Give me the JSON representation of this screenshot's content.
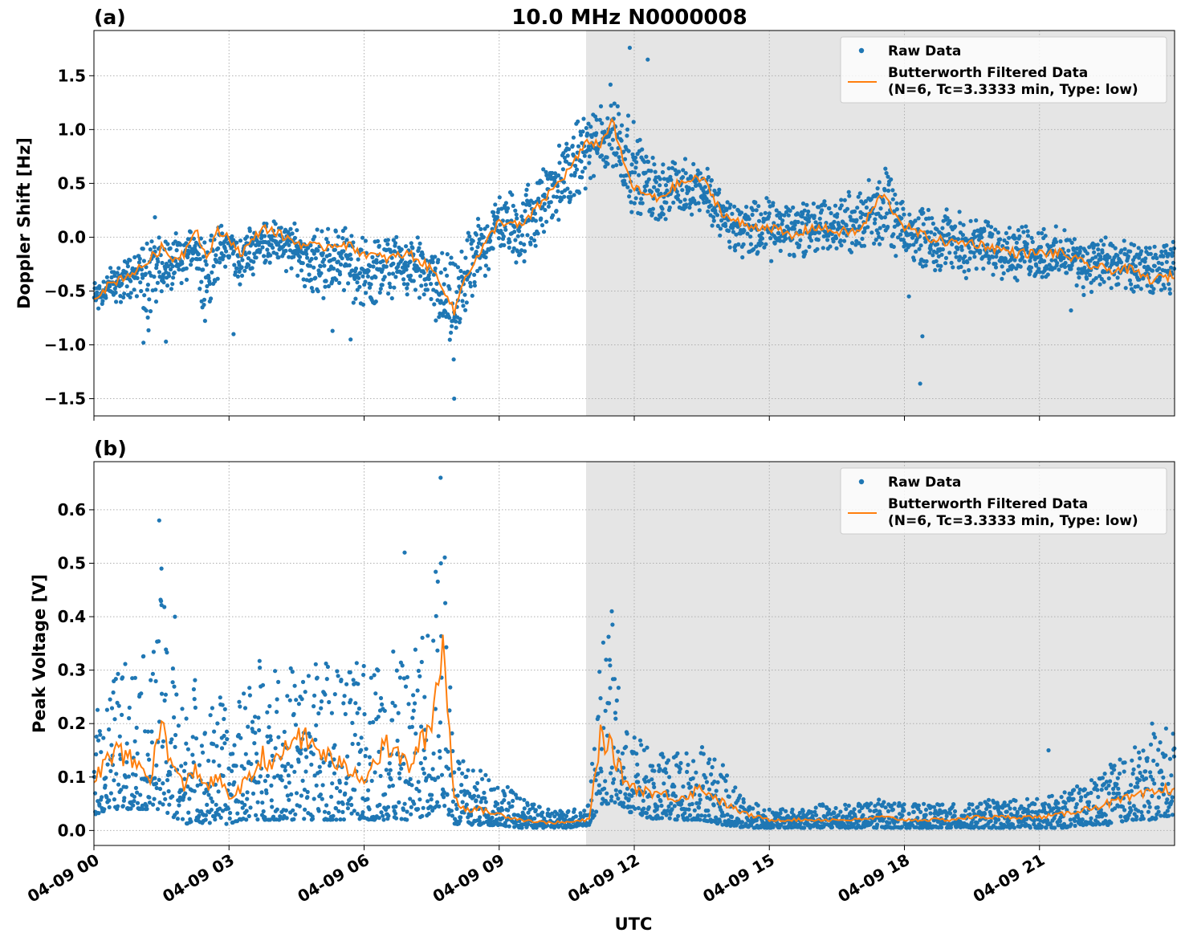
{
  "title": "10.0 MHz N0000008",
  "xlabel": "UTC",
  "x_tick_labels": [
    "04-09 00",
    "04-09 03",
    "04-09 06",
    "04-09 09",
    "04-09 12",
    "04-09 15",
    "04-09 18",
    "04-09 21"
  ],
  "colors": {
    "raw": "#1f77b4",
    "filtered": "#ff7f0e",
    "night_shade": "#e5e5e5"
  },
  "legend": {
    "raw_label": "Raw Data",
    "filtered_label_line1": "Butterworth Filtered Data",
    "filtered_label_line2": "(N=6, Tc=3.3333 min, Type: low)"
  },
  "chart_data": [
    {
      "type": "scatter",
      "panel_label": "(a)",
      "ylabel": "Doppler Shift [Hz]",
      "xlim_hours": [
        0,
        24
      ],
      "ylim": [
        -1.66,
        1.92
      ],
      "yticks": [
        -1.5,
        -1.0,
        -0.5,
        0.0,
        0.5,
        1.0,
        1.5
      ],
      "ytick_labels": [
        "−1.5",
        "−1.0",
        "−0.5",
        "0.0",
        "0.5",
        "1.0",
        "1.5"
      ],
      "shaded_region_hours": [
        10.93,
        24
      ],
      "grid": true,
      "legend_position": "top-right",
      "series": [
        {
          "name": "Butterworth Filtered Data",
          "kind": "line",
          "x_hours": [
            0,
            0.5,
            1.0,
            1.25,
            1.5,
            1.75,
            2.0,
            2.25,
            2.5,
            2.75,
            3.0,
            3.25,
            3.5,
            3.75,
            4.0,
            4.5,
            5.0,
            5.5,
            6.0,
            6.5,
            7.0,
            7.5,
            7.75,
            8.0,
            8.25,
            8.5,
            9.0,
            9.5,
            10.0,
            10.5,
            11.0,
            11.25,
            11.5,
            11.75,
            12.0,
            12.5,
            13.0,
            13.5,
            14.0,
            14.5,
            15.0,
            15.5,
            16.0,
            16.5,
            17.0,
            17.5,
            18.0,
            18.5,
            19.0,
            19.5,
            20.0,
            20.5,
            21.0,
            21.5,
            22.0,
            22.5,
            23.0,
            23.5,
            24.0
          ],
          "y": [
            -0.55,
            -0.4,
            -0.3,
            -0.2,
            -0.1,
            -0.2,
            -0.15,
            0.1,
            -0.2,
            0.05,
            0.0,
            -0.15,
            -0.05,
            0.1,
            0.05,
            -0.05,
            -0.1,
            -0.05,
            -0.15,
            -0.2,
            -0.15,
            -0.3,
            -0.45,
            -0.7,
            -0.35,
            -0.2,
            0.15,
            0.1,
            0.35,
            0.6,
            0.9,
            0.85,
            1.1,
            0.7,
            0.45,
            0.35,
            0.5,
            0.55,
            0.2,
            0.1,
            0.1,
            0.0,
            0.1,
            0.05,
            0.05,
            0.4,
            0.1,
            0.0,
            -0.05,
            -0.05,
            -0.1,
            -0.15,
            -0.15,
            -0.15,
            -0.25,
            -0.3,
            -0.3,
            -0.4,
            -0.35
          ]
        },
        {
          "name": "Raw Data",
          "kind": "scatter",
          "x_hours": [
            0,
            0.5,
            1.0,
            1.25,
            1.5,
            1.75,
            2.0,
            2.25,
            2.5,
            2.75,
            3.0,
            3.25,
            3.5,
            3.75,
            4.0,
            4.5,
            5.0,
            5.5,
            6.0,
            6.5,
            7.0,
            7.5,
            7.75,
            8.0,
            8.25,
            8.5,
            9.0,
            9.5,
            10.0,
            10.5,
            11.0,
            11.25,
            11.5,
            11.75,
            12.0,
            12.5,
            13.0,
            13.5,
            14.0,
            14.5,
            15.0,
            15.5,
            16.0,
            16.5,
            17.0,
            17.5,
            18.0,
            18.5,
            19.0,
            19.5,
            20.0,
            20.5,
            21.0,
            21.5,
            22.0,
            22.5,
            23.0,
            23.5,
            24.0
          ],
          "y_min": [
            -0.75,
            -0.65,
            -0.6,
            -1.0,
            -0.55,
            -0.6,
            -0.5,
            -0.3,
            -0.9,
            -0.4,
            -0.3,
            -0.5,
            -0.4,
            -0.25,
            -0.3,
            -0.4,
            -0.65,
            -0.5,
            -0.75,
            -0.6,
            -0.55,
            -0.75,
            -1.05,
            -1.25,
            -0.8,
            -0.55,
            -0.15,
            -0.35,
            -0.05,
            0.2,
            0.45,
            0.4,
            0.55,
            0.3,
            0.15,
            0.1,
            0.1,
            0.2,
            -0.1,
            -0.3,
            -0.25,
            -0.25,
            -0.25,
            -0.2,
            -0.2,
            -0.15,
            -0.25,
            -0.35,
            -0.35,
            -0.4,
            -0.4,
            -0.45,
            -0.45,
            -0.45,
            -0.55,
            -0.55,
            -0.6,
            -0.6,
            -0.55
          ],
          "y_max": [
            -0.35,
            -0.2,
            -0.05,
            0.35,
            0.05,
            0.05,
            0.05,
            0.2,
            0.05,
            0.15,
            0.15,
            0.05,
            0.15,
            0.2,
            0.2,
            0.15,
            0.15,
            0.15,
            0.05,
            0.05,
            0.05,
            -0.05,
            0.0,
            -0.2,
            0.05,
            0.2,
            0.45,
            0.5,
            0.7,
            1.0,
            1.25,
            1.3,
            1.5,
            1.35,
            1.1,
            0.75,
            0.8,
            0.75,
            0.45,
            0.4,
            0.4,
            0.4,
            0.45,
            0.4,
            0.5,
            0.75,
            0.3,
            0.35,
            0.3,
            0.2,
            0.25,
            0.15,
            0.15,
            0.1,
            0.05,
            0.05,
            0.0,
            -0.05,
            0.0
          ],
          "outliers": [
            [
              1.1,
              -0.98
            ],
            [
              1.6,
              -0.97
            ],
            [
              3.1,
              -0.9
            ],
            [
              5.3,
              -0.87
            ],
            [
              5.7,
              -0.95
            ],
            [
              8.0,
              -1.5
            ],
            [
              11.9,
              1.76
            ],
            [
              12.3,
              1.65
            ],
            [
              18.35,
              -1.36
            ],
            [
              18.4,
              -0.92
            ],
            [
              18.1,
              -0.55
            ],
            [
              21.7,
              -0.68
            ]
          ]
        }
      ]
    },
    {
      "type": "scatter",
      "panel_label": "(b)",
      "ylabel": "Peak Voltage [V]",
      "xlim_hours": [
        0,
        24
      ],
      "ylim": [
        -0.028,
        0.69
      ],
      "yticks": [
        0.0,
        0.1,
        0.2,
        0.3,
        0.4,
        0.5,
        0.6
      ],
      "ytick_labels": [
        "0.0",
        "0.1",
        "0.2",
        "0.3",
        "0.4",
        "0.5",
        "0.6"
      ],
      "shaded_region_hours": [
        10.93,
        24
      ],
      "grid": true,
      "legend_position": "top-right",
      "series": [
        {
          "name": "Butterworth Filtered Data",
          "kind": "line",
          "x_hours": [
            0,
            0.5,
            1.0,
            1.25,
            1.5,
            1.75,
            2.0,
            2.25,
            2.5,
            2.75,
            3.0,
            3.25,
            3.5,
            3.75,
            4.0,
            4.5,
            5.0,
            5.5,
            6.0,
            6.5,
            7.0,
            7.5,
            7.75,
            8.0,
            8.25,
            8.5,
            9.0,
            9.5,
            10.0,
            10.5,
            11.0,
            11.25,
            11.5,
            11.75,
            12.0,
            12.5,
            13.0,
            13.5,
            14.0,
            14.5,
            15.0,
            15.5,
            16.0,
            16.5,
            17.0,
            17.5,
            18.0,
            18.5,
            19.0,
            19.5,
            20.0,
            20.5,
            21.0,
            21.5,
            22.0,
            22.5,
            23.0,
            23.5,
            24.0
          ],
          "y": [
            0.1,
            0.15,
            0.12,
            0.1,
            0.2,
            0.12,
            0.08,
            0.12,
            0.08,
            0.1,
            0.06,
            0.08,
            0.1,
            0.14,
            0.12,
            0.18,
            0.15,
            0.12,
            0.1,
            0.16,
            0.12,
            0.2,
            0.36,
            0.06,
            0.04,
            0.04,
            0.03,
            0.02,
            0.015,
            0.015,
            0.02,
            0.18,
            0.15,
            0.1,
            0.08,
            0.07,
            0.06,
            0.08,
            0.05,
            0.03,
            0.02,
            0.02,
            0.02,
            0.02,
            0.02,
            0.025,
            0.02,
            0.02,
            0.02,
            0.025,
            0.025,
            0.025,
            0.025,
            0.03,
            0.04,
            0.05,
            0.06,
            0.07,
            0.08
          ]
        },
        {
          "name": "Raw Data",
          "kind": "scatter",
          "x_hours": [
            0,
            0.5,
            1.0,
            1.25,
            1.5,
            1.75,
            2.0,
            2.25,
            2.5,
            2.75,
            3.0,
            3.25,
            3.5,
            3.75,
            4.0,
            4.5,
            5.0,
            5.5,
            6.0,
            6.5,
            7.0,
            7.5,
            7.75,
            8.0,
            8.25,
            8.5,
            9.0,
            9.5,
            10.0,
            10.5,
            11.0,
            11.25,
            11.5,
            11.75,
            12.0,
            12.5,
            13.0,
            13.5,
            14.0,
            14.5,
            15.0,
            15.5,
            16.0,
            16.5,
            17.0,
            17.5,
            18.0,
            18.5,
            19.0,
            19.5,
            20.0,
            20.5,
            21.0,
            21.5,
            22.0,
            22.5,
            23.0,
            23.5,
            24.0
          ],
          "y_min": [
            0.03,
            0.04,
            0.04,
            0.04,
            0.04,
            0.02,
            0.01,
            0.02,
            0.01,
            0.02,
            0.01,
            0.02,
            0.02,
            0.02,
            0.02,
            0.02,
            0.02,
            0.02,
            0.02,
            0.02,
            0.02,
            0.03,
            0.05,
            0.01,
            0.01,
            0.01,
            0.01,
            0.005,
            0.005,
            0.005,
            0.01,
            0.05,
            0.05,
            0.04,
            0.03,
            0.02,
            0.02,
            0.02,
            0.01,
            0.005,
            0.005,
            0.005,
            0.005,
            0.005,
            0.005,
            0.005,
            0.005,
            0.005,
            0.005,
            0.005,
            0.005,
            0.005,
            0.005,
            0.005,
            0.01,
            0.01,
            0.02,
            0.02,
            0.03
          ],
          "y_max": [
            0.22,
            0.3,
            0.35,
            0.3,
            0.45,
            0.35,
            0.22,
            0.3,
            0.2,
            0.28,
            0.2,
            0.25,
            0.3,
            0.35,
            0.3,
            0.32,
            0.33,
            0.3,
            0.32,
            0.35,
            0.3,
            0.45,
            0.6,
            0.18,
            0.12,
            0.12,
            0.1,
            0.06,
            0.04,
            0.04,
            0.05,
            0.35,
            0.4,
            0.2,
            0.18,
            0.15,
            0.15,
            0.17,
            0.12,
            0.06,
            0.04,
            0.04,
            0.05,
            0.05,
            0.05,
            0.06,
            0.05,
            0.05,
            0.05,
            0.05,
            0.06,
            0.06,
            0.06,
            0.07,
            0.09,
            0.12,
            0.15,
            0.18,
            0.2
          ],
          "outliers": [
            [
              1.45,
              0.58
            ],
            [
              1.5,
              0.49
            ],
            [
              1.8,
              0.4
            ],
            [
              6.9,
              0.52
            ],
            [
              7.7,
              0.66
            ],
            [
              11.5,
              0.41
            ],
            [
              21.2,
              0.15
            ],
            [
              23.5,
              0.2
            ]
          ]
        }
      ]
    }
  ]
}
